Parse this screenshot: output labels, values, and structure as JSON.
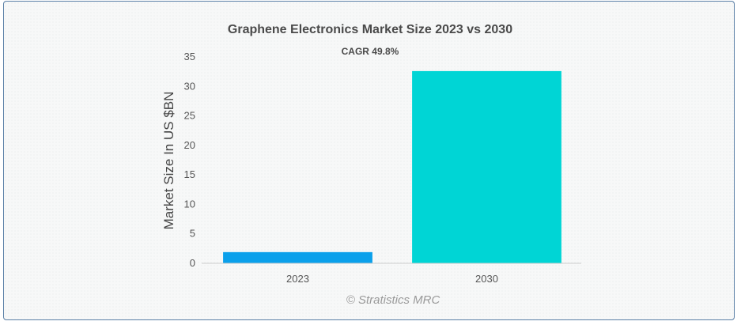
{
  "chart_data": {
    "type": "bar",
    "title": "Graphene Electronics Market Size 2023 vs 2030",
    "subtitle": "CAGR 49.8%",
    "categories": [
      "2023",
      "2030"
    ],
    "values": [
      1.9,
      32.6
    ],
    "bar_colors": [
      "#0aa0eb",
      "#00d5d5"
    ],
    "xlabel": "",
    "ylabel": "Market Size In US $BN",
    "ylim": [
      0,
      35
    ],
    "yticks": [
      0,
      5,
      10,
      15,
      20,
      25,
      30,
      35
    ],
    "grid": false,
    "legend": "none"
  },
  "credit": "© Stratistics MRC"
}
